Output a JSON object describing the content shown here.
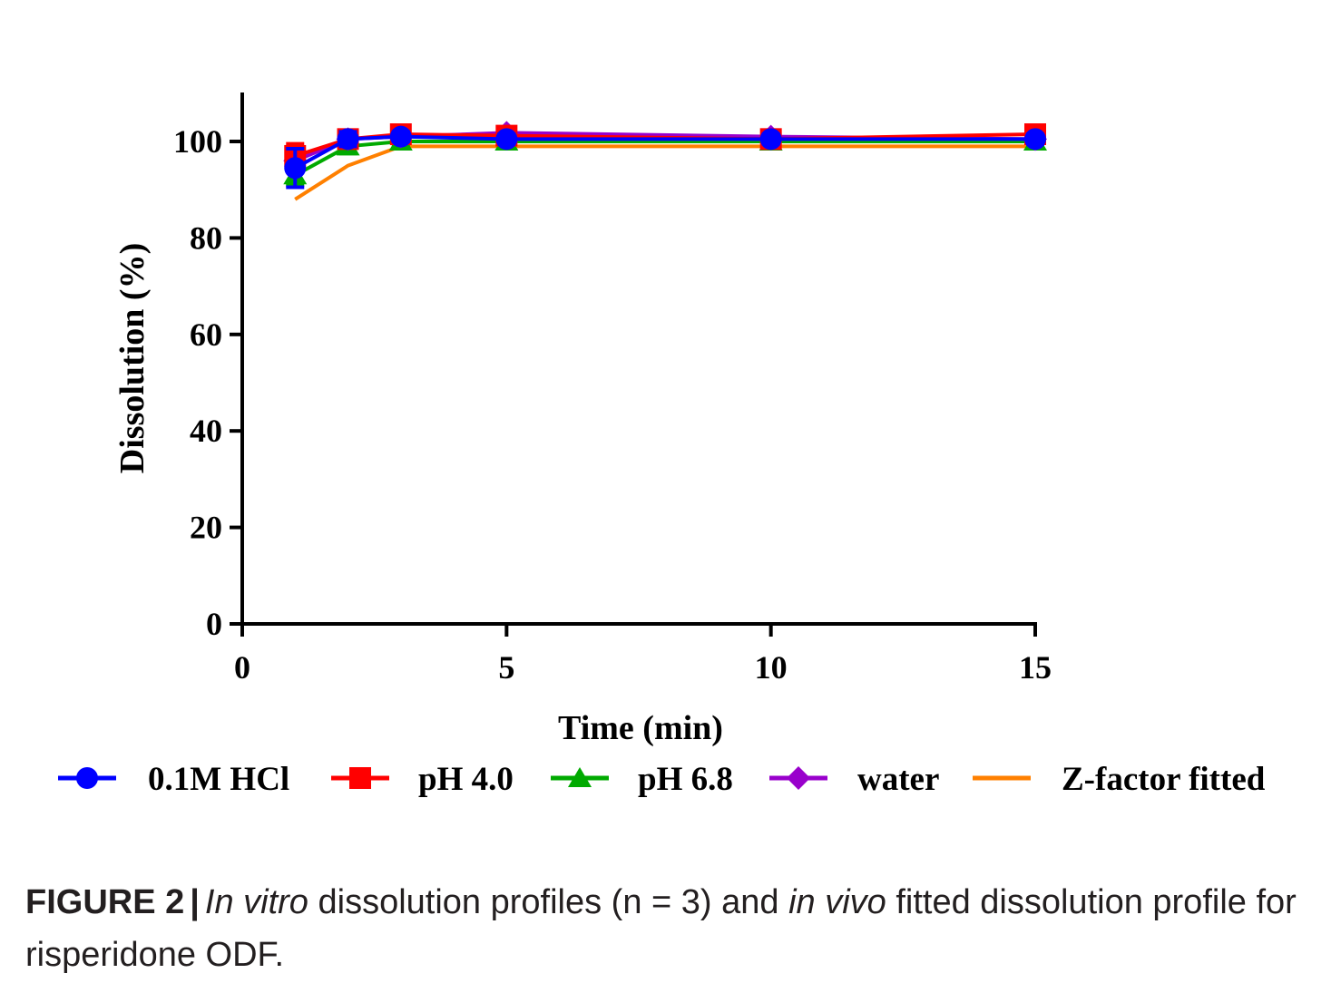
{
  "chart_data": {
    "type": "line",
    "title": "",
    "xlabel": "Time (min)",
    "ylabel": "Dissolution (%)",
    "xlim": [
      0,
      15
    ],
    "ylim": [
      0,
      110
    ],
    "xticks": [
      0,
      5,
      10,
      15
    ],
    "yticks": [
      0,
      20,
      40,
      60,
      80,
      100
    ],
    "grid": false,
    "legend_position": "bottom",
    "series": [
      {
        "name": "pH 4.0",
        "color": "#ff0000",
        "marker": "square",
        "x": [
          1,
          2,
          3,
          5,
          10,
          15
        ],
        "y": [
          97,
          100.5,
          101.5,
          101.2,
          100.5,
          101.5
        ],
        "err": [
          2.5,
          1.5,
          1.5,
          1,
          1,
          1
        ]
      },
      {
        "name": "water",
        "color": "#9900cc",
        "marker": "diamond",
        "x": [
          1,
          2,
          3,
          5,
          10,
          15
        ],
        "y": [
          96,
          100.5,
          101,
          101.8,
          101,
          100.5
        ],
        "err": [
          2,
          1.5,
          1,
          1,
          1,
          1
        ]
      },
      {
        "name": "pH 6.8",
        "color": "#00aa00",
        "marker": "triangle",
        "x": [
          1,
          2,
          3,
          5,
          10,
          15
        ],
        "y": [
          93,
          99,
          100,
          100,
          100,
          100
        ],
        "err": [
          2,
          1.5,
          1,
          1,
          1,
          1
        ]
      },
      {
        "name": "0.1M HCl",
        "color": "#0000ff",
        "marker": "circle",
        "x": [
          1,
          2,
          3,
          5,
          10,
          15
        ],
        "y": [
          94.5,
          100.5,
          101,
          100.5,
          100.5,
          100.5
        ],
        "err": [
          4,
          1.5,
          1,
          1,
          1,
          1
        ]
      },
      {
        "name": "Z-factor fitted",
        "color": "#ff8000",
        "marker": "none",
        "x": [
          1,
          2,
          3,
          5,
          10,
          15
        ],
        "y": [
          88,
          95,
          99,
          99,
          99,
          99
        ],
        "err": []
      }
    ],
    "legend": [
      {
        "name": "0.1M HCl",
        "color": "#0000ff",
        "marker": "circle"
      },
      {
        "name": "pH 4.0",
        "color": "#ff0000",
        "marker": "square"
      },
      {
        "name": "pH 6.8",
        "color": "#00aa00",
        "marker": "triangle"
      },
      {
        "name": "water",
        "color": "#9900cc",
        "marker": "diamond"
      },
      {
        "name": "Z-factor fitted",
        "color": "#ff8000",
        "marker": "none"
      }
    ]
  },
  "caption": {
    "label": "FIGURE 2",
    "separator": "|",
    "part1": "In vitro",
    "part2": " dissolution profiles (n = 3) and ",
    "part3": "in vivo",
    "part4": " fitted dissolution profile for risperidone ODF."
  }
}
